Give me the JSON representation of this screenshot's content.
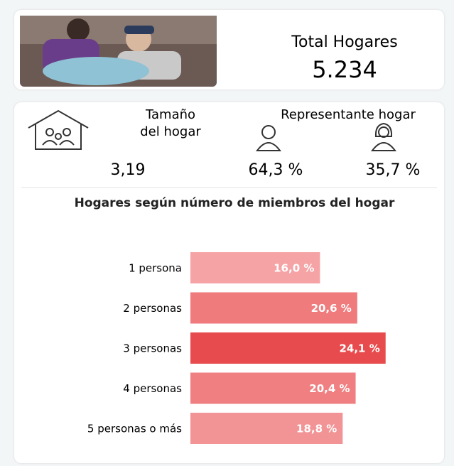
{
  "summary": {
    "title": "Total Hogares",
    "value": "5.234"
  },
  "stats": {
    "size_label": "Tamaño del hogar",
    "size_value": "3,19",
    "representative_label": "Representante hogar",
    "male_value": "64,3 %",
    "female_value": "35,7 %"
  },
  "chart_data": {
    "type": "bar",
    "orientation": "horizontal",
    "title": "Hogares según número de miembros del hogar",
    "categories": [
      "1 persona",
      "2 personas",
      "3 personas",
      "4 personas",
      "5 personas o más"
    ],
    "values": [
      16.0,
      20.6,
      24.1,
      20.4,
      18.8
    ],
    "value_labels": [
      "16,0 %",
      "20,6 %",
      "24,1 %",
      "20,4 %",
      "18,8 %"
    ],
    "colors": [
      "#f5a3a5",
      "#ef7b7d",
      "#e84b4d",
      "#ef7f81",
      "#f29395"
    ]
  }
}
